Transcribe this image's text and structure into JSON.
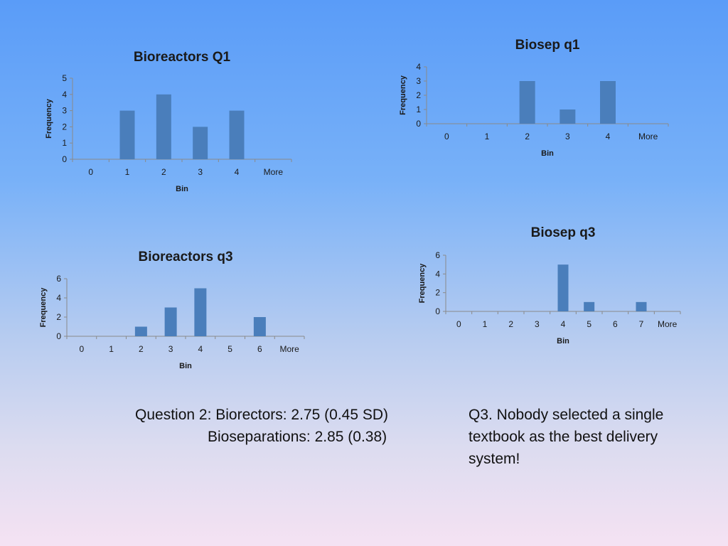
{
  "chart_data": [
    {
      "type": "bar",
      "title": "Bioreactors Q1",
      "xlabel": "Bin",
      "ylabel": "Frequency",
      "categories": [
        "0",
        "1",
        "2",
        "3",
        "4",
        "More"
      ],
      "values": [
        0,
        3,
        4,
        2,
        3,
        0
      ],
      "yticks": [
        0,
        1,
        2,
        3,
        4,
        5
      ],
      "ylim": [
        0,
        5
      ],
      "grid": false,
      "legend": "none"
    },
    {
      "type": "bar",
      "title": "Biosep q1",
      "xlabel": "Bin",
      "ylabel": "Frequency",
      "categories": [
        "0",
        "1",
        "2",
        "3",
        "4",
        "More"
      ],
      "values": [
        0,
        0,
        3,
        1,
        3,
        0
      ],
      "yticks": [
        0,
        1,
        2,
        3,
        4
      ],
      "ylim": [
        0,
        4
      ],
      "grid": false,
      "legend": "none"
    },
    {
      "type": "bar",
      "title": "Bioreactors q3",
      "xlabel": "Bin",
      "ylabel": "Frequency",
      "categories": [
        "0",
        "1",
        "2",
        "3",
        "4",
        "5",
        "6",
        "More"
      ],
      "values": [
        0,
        0,
        1,
        3,
        5,
        0,
        2,
        0
      ],
      "yticks": [
        0,
        2,
        4,
        6
      ],
      "ylim": [
        0,
        6
      ],
      "grid": false,
      "legend": "none"
    },
    {
      "type": "bar",
      "title": "Biosep q3",
      "xlabel": "Bin",
      "ylabel": "Frequency",
      "categories": [
        "0",
        "1",
        "2",
        "3",
        "4",
        "5",
        "6",
        "7",
        "More"
      ],
      "values": [
        0,
        0,
        0,
        0,
        5,
        1,
        0,
        1,
        0
      ],
      "yticks": [
        0,
        2,
        4,
        6
      ],
      "ylim": [
        0,
        6
      ],
      "grid": false,
      "legend": "none"
    }
  ],
  "notes": {
    "question2_line1": "Question 2:  Biorectors: 2.75 (0.45 SD)",
    "question2_line2": "Bioseparations: 2.85 (0.38)",
    "q3_line1": "Q3.  Nobody selected a single",
    "q3_line2": "textbook as the best delivery",
    "q3_line3": "system!"
  }
}
